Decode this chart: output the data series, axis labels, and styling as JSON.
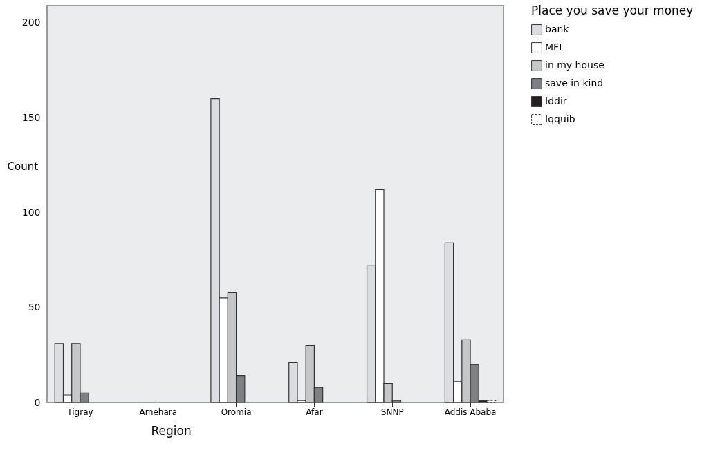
{
  "chart_data": {
    "type": "bar",
    "xlabel": "Region",
    "ylabel": "Count",
    "legend_title": "Place you save your money",
    "legend": "right",
    "grid": false,
    "categories": [
      "Tigray",
      "Amehara",
      "Oromia",
      "Afar",
      "SNNP",
      "Addis Ababa"
    ],
    "ylim": [
      0,
      209
    ],
    "yticks": [
      0,
      50,
      100,
      150,
      200
    ],
    "series": [
      {
        "name": "bank",
        "color": "#dcdde0",
        "values": [
          31,
          null,
          160,
          21,
          72,
          84
        ]
      },
      {
        "name": "MFI",
        "color": "#ffffff",
        "values": [
          4,
          null,
          55,
          1,
          112,
          11
        ]
      },
      {
        "name": "in my house",
        "color": "#c6c7c9",
        "values": [
          31,
          null,
          58,
          30,
          10,
          33
        ]
      },
      {
        "name": "save in kind",
        "color": "#7f8083",
        "values": [
          5,
          null,
          14,
          8,
          1,
          20
        ]
      },
      {
        "name": "Iddir",
        "color": "#231f20",
        "values": [
          null,
          null,
          null,
          null,
          null,
          1
        ]
      },
      {
        "name": "Iqquib",
        "color": "#ffffff",
        "line_style": "dashed",
        "values": [
          null,
          null,
          null,
          null,
          null,
          1
        ]
      }
    ]
  }
}
